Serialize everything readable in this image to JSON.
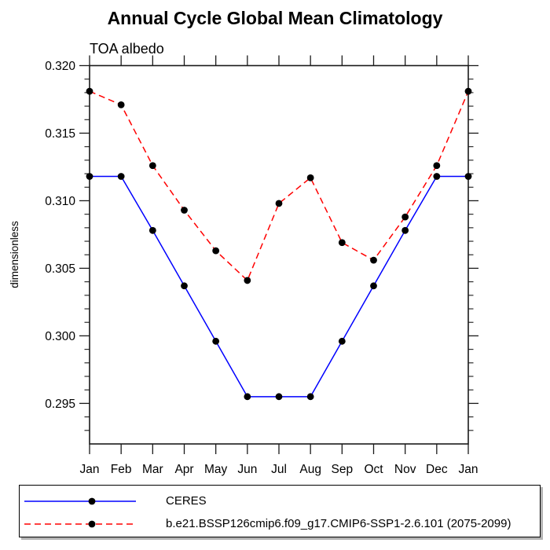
{
  "chart_data": {
    "type": "line",
    "title": "Annual Cycle Global Mean Climatology",
    "subtitle": "TOA albedo",
    "xlabel": "",
    "ylabel": "dimensionless",
    "categories": [
      "Jan",
      "Feb",
      "Mar",
      "Apr",
      "May",
      "Jun",
      "Jul",
      "Aug",
      "Sep",
      "Oct",
      "Nov",
      "Dec",
      "Jan"
    ],
    "ylim": [
      0.292,
      0.32
    ],
    "ytick_major": [
      0.295,
      0.3,
      0.305,
      0.31,
      0.315,
      0.32
    ],
    "ytick_minor_step": 0.001,
    "grid": false,
    "legend_position": "bottom-left-box",
    "series": [
      {
        "name": "CERES",
        "color": "#0000ff",
        "style": "solid",
        "marker": "filled-circle",
        "marker_color": "#000000",
        "values": [
          0.3118,
          0.3118,
          0.3078,
          0.3037,
          0.2996,
          0.2955,
          0.2955,
          0.2955,
          0.2996,
          0.3037,
          0.3078,
          0.3118,
          0.3118
        ]
      },
      {
        "name": "b.e21.BSSP126cmip6.f09_g17.CMIP6-SSP1-2.6.101 (2075-2099)",
        "color": "#ff0000",
        "style": "dashed",
        "marker": "filled-circle",
        "marker_color": "#000000",
        "values": [
          0.3181,
          0.3171,
          0.3126,
          0.3093,
          0.3063,
          0.3041,
          0.3098,
          0.3117,
          0.3069,
          0.3056,
          0.3088,
          0.3126,
          0.3181
        ]
      }
    ],
    "colors": {
      "frame": "#1a1a1a",
      "text": "#000000",
      "legend_shadow": "#b3b3b3"
    }
  }
}
